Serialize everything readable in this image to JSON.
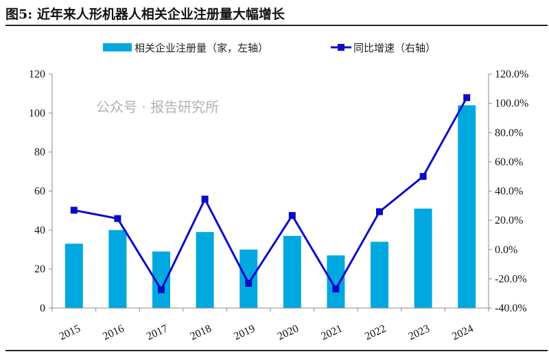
{
  "title": "图5:  近年来人形机器人相关企业注册量大幅增长",
  "watermark": "公众号 · 报告研究所",
  "chart_data": {
    "type": "bar+line",
    "categories": [
      "2015",
      "2016",
      "2017",
      "2018",
      "2019",
      "2020",
      "2021",
      "2022",
      "2023",
      "2024"
    ],
    "series": [
      {
        "name": "相关企业注册量（家，左轴）",
        "type": "bar",
        "axis": "left",
        "color": "#00A8E0",
        "values": [
          33,
          40,
          29,
          39,
          30,
          37,
          27,
          34,
          51,
          104
        ]
      },
      {
        "name": "同比增速（右轴）",
        "type": "line",
        "axis": "right",
        "color": "#0A0AC8",
        "marker": "square",
        "values": [
          26.9,
          21.2,
          -27.5,
          34.5,
          -23.1,
          23.3,
          -27.0,
          25.9,
          50.0,
          103.9
        ]
      }
    ],
    "left_axis": {
      "ylim": [
        0,
        120
      ],
      "ticks": [
        "0",
        "20",
        "40",
        "60",
        "80",
        "100",
        "120"
      ]
    },
    "right_axis": {
      "ylim": [
        -40,
        120
      ],
      "ticks": [
        "-40.0%",
        "-20.0%",
        "0.0%",
        "20.0%",
        "40.0%",
        "60.0%",
        "80.0%",
        "100.0%",
        "120.0%"
      ]
    },
    "legend_position": "top-center",
    "grid": false
  }
}
